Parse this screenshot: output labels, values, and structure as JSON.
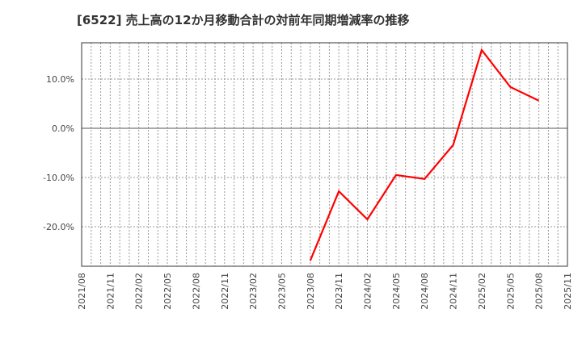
{
  "title": "[6522]  売上高の12か月移動合計の対前年同期増減率の推移",
  "colors": {
    "line": "#ff0000",
    "grid": "#999999",
    "axis": "#333333",
    "zero_line": "#555555"
  },
  "chart_data": {
    "type": "line",
    "title": "[6522]  売上高の12か月移動合計の対前年同期増減率の推移",
    "xlabel": "",
    "ylabel": "",
    "x_ticks": [
      "2021/08",
      "2021/11",
      "2022/02",
      "2022/05",
      "2022/08",
      "2022/11",
      "2023/02",
      "2023/05",
      "2023/08",
      "2023/11",
      "2024/02",
      "2024/05",
      "2024/08",
      "2024/11",
      "2025/02",
      "2025/05",
      "2025/08",
      "2025/11"
    ],
    "y_ticks": [
      "10.0%",
      "0.0%",
      "-10.0%",
      "-20.0%"
    ],
    "y_tick_values": [
      10,
      0,
      -10,
      -20
    ],
    "ylim": [
      -28.0,
      17.5
    ],
    "grid": true,
    "legend": "none",
    "series": [
      {
        "name": "売上高12か月移動合計 対前年同期増減率",
        "x": [
          "2023/08",
          "2023/11",
          "2024/02",
          "2024/05",
          "2024/08",
          "2024/11",
          "2025/02",
          "2025/05",
          "2025/08"
        ],
        "values": [
          -26.9,
          -12.8,
          -18.5,
          -9.5,
          -10.3,
          -3.4,
          15.9,
          8.4,
          5.6
        ]
      }
    ]
  }
}
